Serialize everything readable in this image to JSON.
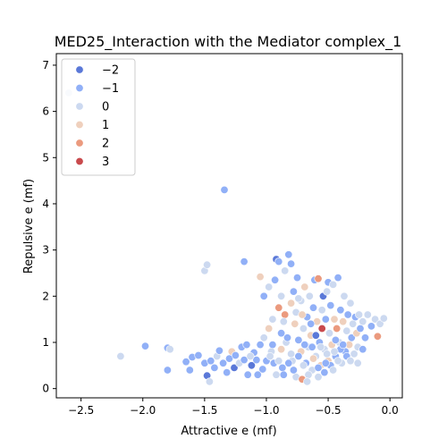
{
  "chart_data": {
    "type": "scatter",
    "title": "MED25_Interaction with the Mediator complex_1",
    "xlabel": "Attractive e (mf)",
    "ylabel": "Repulsive e (mf)",
    "xlim": [
      -2.7,
      0.1
    ],
    "ylim": [
      -0.2,
      7.25
    ],
    "xticks": [
      "−2.5",
      "−2.0",
      "−1.5",
      "−1.0",
      "−0.5",
      "0.0"
    ],
    "xtick_values": [
      -2.5,
      -2.0,
      -1.5,
      -1.0,
      -0.5,
      0.0
    ],
    "yticks": [
      "0",
      "1",
      "2",
      "3",
      "4",
      "5",
      "6",
      "7"
    ],
    "ytick_values": [
      0,
      1,
      2,
      3,
      4,
      5,
      6,
      7
    ],
    "legend": {
      "placement": "top-left",
      "entries": [
        {
          "label": "−2",
          "value": -2,
          "color": "#5a78d8"
        },
        {
          "label": "−1",
          "value": -1,
          "color": "#91b0f7"
        },
        {
          "label": "0",
          "value": 0,
          "color": "#ccd9f0"
        },
        {
          "label": "1",
          "value": 1,
          "color": "#efd0bd"
        },
        {
          "label": "2",
          "value": 2,
          "color": "#eb9a7e"
        },
        {
          "label": "3",
          "value": 3,
          "color": "#c94a4d"
        }
      ]
    },
    "points": [
      {
        "x": -2.6,
        "y": 6.4,
        "c": 0
      },
      {
        "x": -2.5,
        "y": 6.9,
        "c": 0
      },
      {
        "x": -2.18,
        "y": 0.7,
        "c": 0
      },
      {
        "x": -1.98,
        "y": 0.92,
        "c": -1
      },
      {
        "x": -1.8,
        "y": 0.88,
        "c": -1
      },
      {
        "x": -1.78,
        "y": 0.85,
        "c": 0
      },
      {
        "x": -1.8,
        "y": 0.4,
        "c": -1
      },
      {
        "x": -1.65,
        "y": 0.58,
        "c": -1
      },
      {
        "x": -1.62,
        "y": 0.4,
        "c": -1
      },
      {
        "x": -1.6,
        "y": 0.68,
        "c": -1
      },
      {
        "x": -1.55,
        "y": 0.72,
        "c": -1
      },
      {
        "x": -1.5,
        "y": 0.55,
        "c": -1
      },
      {
        "x": -1.48,
        "y": 0.28,
        "c": -2
      },
      {
        "x": -1.46,
        "y": 0.15,
        "c": 0
      },
      {
        "x": -1.45,
        "y": 0.6,
        "c": -1
      },
      {
        "x": -1.42,
        "y": 0.45,
        "c": -1
      },
      {
        "x": -1.4,
        "y": 0.7,
        "c": 0
      },
      {
        "x": -1.38,
        "y": 0.82,
        "c": -1
      },
      {
        "x": -1.35,
        "y": 0.55,
        "c": -1
      },
      {
        "x": -1.32,
        "y": 0.35,
        "c": -1
      },
      {
        "x": -1.3,
        "y": 0.65,
        "c": -1
      },
      {
        "x": -1.28,
        "y": 0.8,
        "c": 1
      },
      {
        "x": -1.26,
        "y": 0.45,
        "c": -2
      },
      {
        "x": -1.25,
        "y": 0.72,
        "c": -1
      },
      {
        "x": -1.22,
        "y": 0.55,
        "c": 0
      },
      {
        "x": -1.2,
        "y": 0.9,
        "c": -1
      },
      {
        "x": -1.18,
        "y": 0.62,
        "c": -1
      },
      {
        "x": -1.15,
        "y": 0.3,
        "c": -1
      },
      {
        "x": -1.12,
        "y": 0.5,
        "c": -2
      },
      {
        "x": -1.1,
        "y": 0.78,
        "c": -1
      },
      {
        "x": -1.08,
        "y": 0.62,
        "c": -1
      },
      {
        "x": -1.05,
        "y": 0.95,
        "c": -1
      },
      {
        "x": -1.03,
        "y": 0.42,
        "c": -1
      },
      {
        "x": -1.02,
        "y": 1.1,
        "c": 0
      },
      {
        "x": -1.0,
        "y": 0.6,
        "c": -1
      },
      {
        "x": -0.98,
        "y": 1.3,
        "c": 1
      },
      {
        "x": -0.96,
        "y": 0.8,
        "c": 0
      },
      {
        "x": -0.95,
        "y": 1.5,
        "c": 0
      },
      {
        "x": -0.94,
        "y": 0.55,
        "c": -1
      },
      {
        "x": -0.92,
        "y": 2.8,
        "c": -2
      },
      {
        "x": -0.9,
        "y": 2.75,
        "c": -1
      },
      {
        "x": -0.9,
        "y": 1.75,
        "c": 2
      },
      {
        "x": -0.88,
        "y": 1.2,
        "c": -1
      },
      {
        "x": -0.87,
        "y": 0.45,
        "c": -1
      },
      {
        "x": -0.85,
        "y": 2.55,
        "c": 0
      },
      {
        "x": -0.85,
        "y": 1.6,
        "c": 2
      },
      {
        "x": -0.84,
        "y": 1.0,
        "c": 0
      },
      {
        "x": -0.82,
        "y": 2.9,
        "c": -1
      },
      {
        "x": -0.8,
        "y": 2.7,
        "c": -1
      },
      {
        "x": -0.8,
        "y": 1.85,
        "c": 1
      },
      {
        "x": -0.79,
        "y": 0.6,
        "c": 0
      },
      {
        "x": -0.78,
        "y": 2.1,
        "c": -1
      },
      {
        "x": -0.77,
        "y": 1.4,
        "c": 1
      },
      {
        "x": -0.76,
        "y": 0.25,
        "c": 0
      },
      {
        "x": -0.75,
        "y": 2.4,
        "c": -1
      },
      {
        "x": -0.74,
        "y": 1.05,
        "c": -1
      },
      {
        "x": -0.72,
        "y": 1.9,
        "c": 0
      },
      {
        "x": -0.72,
        "y": 0.8,
        "c": 1
      },
      {
        "x": -0.71,
        "y": 0.2,
        "c": 2
      },
      {
        "x": -0.7,
        "y": 1.3,
        "c": 0
      },
      {
        "x": -0.69,
        "y": 2.2,
        "c": 1
      },
      {
        "x": -0.68,
        "y": 0.55,
        "c": -1
      },
      {
        "x": -0.67,
        "y": 1.55,
        "c": -1
      },
      {
        "x": -0.66,
        "y": 0.9,
        "c": 0
      },
      {
        "x": -0.65,
        "y": 2.0,
        "c": 0
      },
      {
        "x": -0.64,
        "y": 1.15,
        "c": 1
      },
      {
        "x": -0.63,
        "y": 0.4,
        "c": 0
      },
      {
        "x": -0.62,
        "y": 1.75,
        "c": -1
      },
      {
        "x": -0.61,
        "y": 2.35,
        "c": -1
      },
      {
        "x": -0.6,
        "y": 0.7,
        "c": 0
      },
      {
        "x": -0.59,
        "y": 1.45,
        "c": 1
      },
      {
        "x": -0.58,
        "y": 2.38,
        "c": 2
      },
      {
        "x": -0.57,
        "y": 1.0,
        "c": -1
      },
      {
        "x": -0.56,
        "y": 0.5,
        "c": 1
      },
      {
        "x": -0.55,
        "y": 1.7,
        "c": 0
      },
      {
        "x": -0.55,
        "y": 1.3,
        "c": 3
      },
      {
        "x": -0.54,
        "y": 2.0,
        "c": -2
      },
      {
        "x": -0.53,
        "y": 0.85,
        "c": 0
      },
      {
        "x": -0.52,
        "y": 1.5,
        "c": -1
      },
      {
        "x": -0.51,
        "y": 2.1,
        "c": 0
      },
      {
        "x": -0.5,
        "y": 2.3,
        "c": -1
      },
      {
        "x": -0.5,
        "y": 0.6,
        "c": 1
      },
      {
        "x": -0.49,
        "y": 1.2,
        "c": 0
      },
      {
        "x": -0.48,
        "y": 1.8,
        "c": -1
      },
      {
        "x": -0.47,
        "y": 0.95,
        "c": 1
      },
      {
        "x": -0.46,
        "y": 2.25,
        "c": 0
      },
      {
        "x": -0.45,
        "y": 1.5,
        "c": 1
      },
      {
        "x": -0.44,
        "y": 0.7,
        "c": -1
      },
      {
        "x": -0.43,
        "y": 1.3,
        "c": 2
      },
      {
        "x": -0.42,
        "y": 2.4,
        "c": -1
      },
      {
        "x": -0.41,
        "y": 1.0,
        "c": 0
      },
      {
        "x": -0.4,
        "y": 1.7,
        "c": -1
      },
      {
        "x": -0.39,
        "y": 0.55,
        "c": 0
      },
      {
        "x": -0.38,
        "y": 1.45,
        "c": 1
      },
      {
        "x": -0.37,
        "y": 2.0,
        "c": 0
      },
      {
        "x": -0.36,
        "y": 0.8,
        "c": -1
      },
      {
        "x": -0.35,
        "y": 1.25,
        "c": 0
      },
      {
        "x": -0.34,
        "y": 1.6,
        "c": -1
      },
      {
        "x": -0.33,
        "y": 0.95,
        "c": 1
      },
      {
        "x": -0.32,
        "y": 1.85,
        "c": 0
      },
      {
        "x": -0.31,
        "y": 1.1,
        "c": -1
      },
      {
        "x": -0.3,
        "y": 1.4,
        "c": 0
      },
      {
        "x": -0.29,
        "y": 0.75,
        "c": 0
      },
      {
        "x": -0.28,
        "y": 1.55,
        "c": -1
      },
      {
        "x": -0.27,
        "y": 1.2,
        "c": 1
      },
      {
        "x": -0.26,
        "y": 0.9,
        "c": 0
      },
      {
        "x": -0.25,
        "y": 1.6,
        "c": 0
      },
      {
        "x": -0.24,
        "y": 1.3,
        "c": -1
      },
      {
        "x": -0.22,
        "y": 1.45,
        "c": 0
      },
      {
        "x": -0.2,
        "y": 1.1,
        "c": -1
      },
      {
        "x": -0.18,
        "y": 1.6,
        "c": 0
      },
      {
        "x": -0.15,
        "y": 1.35,
        "c": -1
      },
      {
        "x": -0.12,
        "y": 1.5,
        "c": 0
      },
      {
        "x": -0.1,
        "y": 1.13,
        "c": 2
      },
      {
        "x": -0.08,
        "y": 1.4,
        "c": 0
      },
      {
        "x": -0.05,
        "y": 1.52,
        "c": 0
      },
      {
        "x": -1.5,
        "y": 2.55,
        "c": 0
      },
      {
        "x": -1.48,
        "y": 2.68,
        "c": 0
      },
      {
        "x": -1.34,
        "y": 4.3,
        "c": -1
      },
      {
        "x": -1.18,
        "y": 2.75,
        "c": -1
      },
      {
        "x": -1.05,
        "y": 2.42,
        "c": 1
      },
      {
        "x": -1.02,
        "y": 2.0,
        "c": -1
      },
      {
        "x": -0.98,
        "y": 2.2,
        "c": 0
      },
      {
        "x": -0.93,
        "y": 2.35,
        "c": -1
      },
      {
        "x": -0.88,
        "y": 2.0,
        "c": 0
      },
      {
        "x": -0.86,
        "y": 1.45,
        "c": 0
      },
      {
        "x": -0.83,
        "y": 1.1,
        "c": -1
      },
      {
        "x": -0.8,
        "y": 0.75,
        "c": 0
      },
      {
        "x": -0.78,
        "y": 0.4,
        "c": -1
      },
      {
        "x": -0.76,
        "y": 1.65,
        "c": 0
      },
      {
        "x": -0.74,
        "y": 1.95,
        "c": 0
      },
      {
        "x": -0.71,
        "y": 1.6,
        "c": 1
      },
      {
        "x": -0.69,
        "y": 0.95,
        "c": -1
      },
      {
        "x": -0.66,
        "y": 0.3,
        "c": 0
      },
      {
        "x": -0.64,
        "y": 1.4,
        "c": -1
      },
      {
        "x": -0.62,
        "y": 0.65,
        "c": 1
      },
      {
        "x": -0.6,
        "y": 1.15,
        "c": -2
      },
      {
        "x": -0.58,
        "y": 0.45,
        "c": -1
      },
      {
        "x": -0.56,
        "y": 0.9,
        "c": 0
      },
      {
        "x": -0.53,
        "y": 0.35,
        "c": -1
      },
      {
        "x": -0.51,
        "y": 0.75,
        "c": 0
      },
      {
        "x": -0.48,
        "y": 0.5,
        "c": -1
      },
      {
        "x": -0.46,
        "y": 0.4,
        "c": 0
      },
      {
        "x": -0.44,
        "y": 1.05,
        "c": -1
      },
      {
        "x": -0.42,
        "y": 0.6,
        "c": 0
      },
      {
        "x": -0.4,
        "y": 0.85,
        "c": -1
      },
      {
        "x": -0.35,
        "y": 0.7,
        "c": -1
      },
      {
        "x": -0.32,
        "y": 0.6,
        "c": 0
      },
      {
        "x": -0.92,
        "y": 0.3,
        "c": 0
      },
      {
        "x": -0.95,
        "y": 0.95,
        "c": -1
      },
      {
        "x": -0.97,
        "y": 0.7,
        "c": 0
      },
      {
        "x": -1.07,
        "y": 0.3,
        "c": -1
      },
      {
        "x": -1.13,
        "y": 0.7,
        "c": 0
      },
      {
        "x": -1.16,
        "y": 0.95,
        "c": -1
      },
      {
        "x": -0.74,
        "y": 0.7,
        "c": -1
      },
      {
        "x": -0.7,
        "y": 0.5,
        "c": 0
      },
      {
        "x": -0.67,
        "y": 0.15,
        "c": 0
      },
      {
        "x": -0.63,
        "y": 0.9,
        "c": -1
      },
      {
        "x": -0.88,
        "y": 0.85,
        "c": 1
      },
      {
        "x": -0.82,
        "y": 0.55,
        "c": -1
      },
      {
        "x": -0.9,
        "y": 0.6,
        "c": 0
      },
      {
        "x": -0.86,
        "y": 0.3,
        "c": -1
      },
      {
        "x": -0.58,
        "y": 0.25,
        "c": 0
      },
      {
        "x": -0.52,
        "y": 0.55,
        "c": -1
      },
      {
        "x": -0.45,
        "y": 0.8,
        "c": 0
      },
      {
        "x": -0.38,
        "y": 0.95,
        "c": -1
      },
      {
        "x": -0.26,
        "y": 0.55,
        "c": 0
      },
      {
        "x": -0.22,
        "y": 0.85,
        "c": -1
      }
    ]
  }
}
